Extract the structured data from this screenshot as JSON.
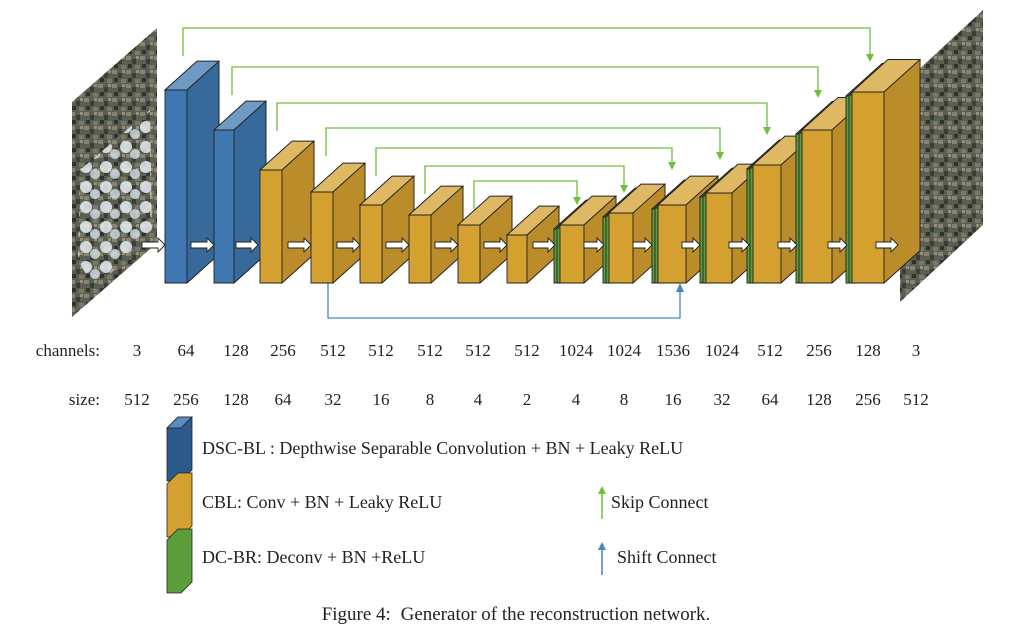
{
  "colors": {
    "dsc": "#3f78b0",
    "cbl": "#d4a030",
    "dcbr": "#5d9e3c",
    "skip": "#6fbf3c",
    "shift": "#4a86b8"
  },
  "rows": {
    "channels_label": "channels:",
    "size_label": "size:",
    "channels": [
      "3",
      "64",
      "128",
      "256",
      "512",
      "512",
      "512",
      "512",
      "512",
      "1024",
      "1024",
      "1536",
      "1024",
      "512",
      "256",
      "128",
      "3"
    ],
    "sizes": [
      "512",
      "256",
      "128",
      "64",
      "32",
      "16",
      "8",
      "4",
      "2",
      "4",
      "8",
      "16",
      "32",
      "64",
      "128",
      "256",
      "512"
    ]
  },
  "legend": [
    {
      "type": "dsc",
      "text": "DSC-BL : Depthwise Separable Convolution + BN + Leaky ReLU"
    },
    {
      "type": "cbl",
      "text": "CBL: Conv + BN + Leaky ReLU"
    },
    {
      "type": "dcbr",
      "text": "DC-BR: Deconv + BN +ReLU"
    }
  ],
  "arrow_legend": [
    {
      "type": "skip",
      "text": "Skip Connect"
    },
    {
      "type": "shift",
      "text": "Shift Connect"
    }
  ],
  "caption": {
    "label": "Figure 4:",
    "text": "Generator of the reconstruction network."
  }
}
